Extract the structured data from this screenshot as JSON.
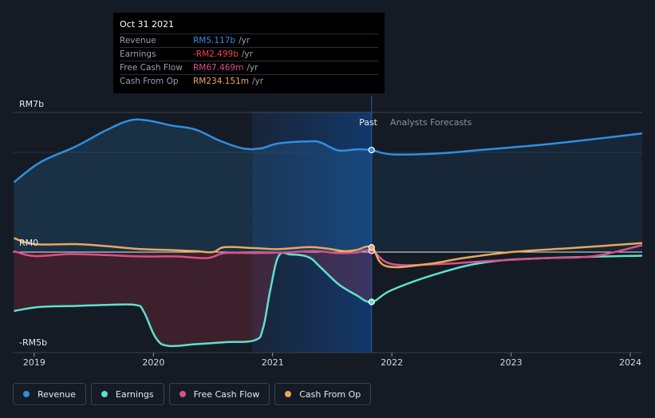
{
  "tooltip": {
    "date": "Oct 31 2021",
    "rows": [
      {
        "label": "Revenue",
        "value": "RM5.117b",
        "unit": "/yr",
        "color": "#2f8fe0"
      },
      {
        "label": "Earnings",
        "value": "-RM2.499b",
        "unit": "/yr",
        "color": "#f0474b"
      },
      {
        "label": "Free Cash Flow",
        "value": "RM67.469m",
        "unit": "/yr",
        "color": "#d9508c"
      },
      {
        "label": "Cash From Op",
        "value": "RM234.151m",
        "unit": "/yr",
        "color": "#e9a95a"
      }
    ]
  },
  "labels": {
    "past": "Past",
    "forecast": "Analysts Forecasts"
  },
  "legend": [
    {
      "label": "Revenue",
      "color": "#2f8fe0"
    },
    {
      "label": "Earnings",
      "color": "#5fe0d0"
    },
    {
      "label": "Free Cash Flow",
      "color": "#d9508c"
    },
    {
      "label": "Cash From Op",
      "color": "#e9a95a"
    }
  ],
  "chart_data": {
    "type": "line",
    "unit": "RM billions",
    "y_tick_labels": [
      "RM7b",
      "RM0",
      "-RM5b"
    ],
    "ylim": [
      -5,
      7
    ],
    "xlim": [
      2018.82,
      2024.1
    ],
    "x_tick_labels": [
      "2019",
      "2020",
      "2021",
      "2022",
      "2023",
      "2024"
    ],
    "x_ticks": [
      2019,
      2020,
      2021,
      2022,
      2023,
      2024
    ],
    "past_end": 2021.83,
    "highlight_start": 2020.83,
    "series": [
      {
        "name": "Revenue",
        "color": "#2f8fe0",
        "points": [
          [
            2018.83,
            3.5
          ],
          [
            2019.05,
            4.5
          ],
          [
            2019.35,
            5.3
          ],
          [
            2019.6,
            6.1
          ],
          [
            2019.8,
            6.6
          ],
          [
            2019.95,
            6.6
          ],
          [
            2020.15,
            6.35
          ],
          [
            2020.35,
            6.15
          ],
          [
            2020.55,
            5.6
          ],
          [
            2020.75,
            5.2
          ],
          [
            2020.9,
            5.2
          ],
          [
            2021.05,
            5.45
          ],
          [
            2021.3,
            5.55
          ],
          [
            2021.4,
            5.5
          ],
          [
            2021.55,
            5.1
          ],
          [
            2021.7,
            5.15
          ],
          [
            2021.83,
            5.117
          ],
          [
            2022.0,
            4.9
          ],
          [
            2022.4,
            4.95
          ],
          [
            2022.8,
            5.15
          ],
          [
            2023.2,
            5.35
          ],
          [
            2023.6,
            5.6
          ],
          [
            2024.1,
            5.95
          ]
        ]
      },
      {
        "name": "Earnings",
        "color": "#5fe0d0",
        "points": [
          [
            2018.83,
            -2.95
          ],
          [
            2019.05,
            -2.75
          ],
          [
            2019.35,
            -2.7
          ],
          [
            2019.6,
            -2.65
          ],
          [
            2019.85,
            -2.65
          ],
          [
            2019.92,
            -3.0
          ],
          [
            2020.02,
            -4.3
          ],
          [
            2020.12,
            -4.7
          ],
          [
            2020.35,
            -4.62
          ],
          [
            2020.6,
            -4.52
          ],
          [
            2020.85,
            -4.42
          ],
          [
            2020.92,
            -3.8
          ],
          [
            2020.98,
            -1.9
          ],
          [
            2021.05,
            -0.2
          ],
          [
            2021.15,
            -0.12
          ],
          [
            2021.3,
            -0.25
          ],
          [
            2021.4,
            -0.75
          ],
          [
            2021.55,
            -1.6
          ],
          [
            2021.7,
            -2.15
          ],
          [
            2021.83,
            -2.499
          ],
          [
            2022.0,
            -1.9
          ],
          [
            2022.4,
            -1.05
          ],
          [
            2022.8,
            -0.5
          ],
          [
            2023.3,
            -0.3
          ],
          [
            2024.1,
            -0.18
          ]
        ]
      },
      {
        "name": "Free Cash Flow",
        "color": "#d9508c",
        "points": [
          [
            2018.83,
            0.05
          ],
          [
            2019.0,
            -0.2
          ],
          [
            2019.3,
            -0.1
          ],
          [
            2019.6,
            -0.15
          ],
          [
            2019.9,
            -0.22
          ],
          [
            2020.2,
            -0.22
          ],
          [
            2020.45,
            -0.3
          ],
          [
            2020.6,
            -0.05
          ],
          [
            2020.85,
            -0.05
          ],
          [
            2021.1,
            -0.02
          ],
          [
            2021.35,
            0.05
          ],
          [
            2021.55,
            -0.05
          ],
          [
            2021.7,
            -0.02
          ],
          [
            2021.83,
            0.067
          ],
          [
            2022.0,
            -0.6
          ],
          [
            2022.4,
            -0.6
          ],
          [
            2022.8,
            -0.45
          ],
          [
            2023.3,
            -0.3
          ],
          [
            2023.7,
            -0.2
          ],
          [
            2024.1,
            0.35
          ]
        ]
      },
      {
        "name": "Cash From Op",
        "color": "#e9a95a",
        "points": [
          [
            2018.83,
            0.7
          ],
          [
            2019.0,
            0.4
          ],
          [
            2019.35,
            0.4
          ],
          [
            2019.6,
            0.3
          ],
          [
            2019.9,
            0.15
          ],
          [
            2020.15,
            0.1
          ],
          [
            2020.35,
            0.05
          ],
          [
            2020.5,
            0.0
          ],
          [
            2020.6,
            0.25
          ],
          [
            2020.85,
            0.2
          ],
          [
            2021.05,
            0.15
          ],
          [
            2021.3,
            0.25
          ],
          [
            2021.45,
            0.18
          ],
          [
            2021.6,
            0.05
          ],
          [
            2021.7,
            0.1
          ],
          [
            2021.83,
            0.234
          ],
          [
            2021.95,
            -0.7
          ],
          [
            2022.3,
            -0.6
          ],
          [
            2022.6,
            -0.3
          ],
          [
            2023.0,
            0.0
          ],
          [
            2023.5,
            0.2
          ],
          [
            2024.1,
            0.45
          ]
        ]
      }
    ]
  }
}
